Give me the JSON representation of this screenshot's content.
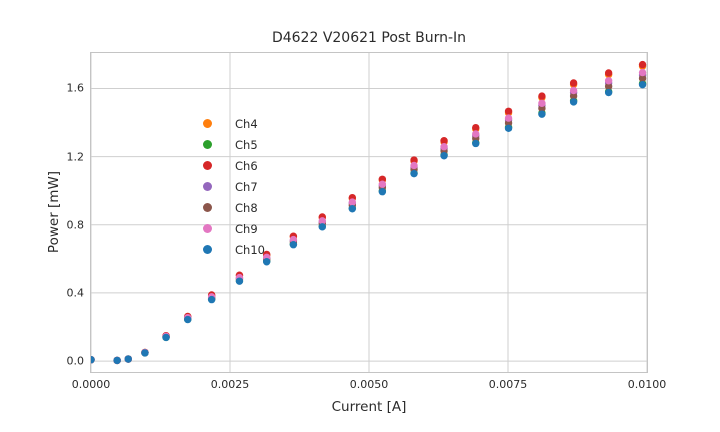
{
  "figure": {
    "title": "D4622 V20621 Post Burn-In",
    "xlabel": "Current [A]",
    "ylabel": "Power [mW]"
  },
  "chart_data": {
    "type": "scatter",
    "title": "D4622 V20621 Post Burn-In",
    "xlabel": "Current [A]",
    "ylabel": "Power [mW]",
    "xlim": [
      0.0,
      0.01
    ],
    "ylim": [
      -0.064,
      1.808
    ],
    "x_ticks": [
      0.0,
      0.0025,
      0.005,
      0.0075,
      0.01
    ],
    "x_tick_labels": [
      "0.0000",
      "0.0025",
      "0.0050",
      "0.0075",
      "0.0100"
    ],
    "y_ticks": [
      0.0,
      0.4,
      0.8,
      1.2,
      1.6
    ],
    "y_tick_labels": [
      "0.0",
      "0.4",
      "0.8",
      "1.2",
      "1.6"
    ],
    "grid": true,
    "grid_color": "#cfcfcf",
    "legend_position": "upper left",
    "x": [
      0.0,
      0.00047,
      0.00067,
      0.00097,
      0.00135,
      0.00174,
      0.00217,
      0.00267,
      0.00316,
      0.00364,
      0.00416,
      0.0047,
      0.00524,
      0.00581,
      0.00635,
      0.00692,
      0.00751,
      0.00811,
      0.00868,
      0.00931,
      0.00992
    ],
    "series": [
      {
        "name": "Ch4",
        "color": "#ff7f0e",
        "values": [
          0.008,
          0.004,
          0.012,
          0.051,
          0.148,
          0.261,
          0.385,
          0.501,
          0.622,
          0.729,
          0.841,
          0.954,
          1.061,
          1.173,
          1.286,
          1.362,
          1.457,
          1.546,
          1.623,
          1.681,
          1.73
        ]
      },
      {
        "name": "Ch5",
        "color": "#2ca02c",
        "values": [
          0.008,
          0.004,
          0.012,
          0.048,
          0.139,
          0.245,
          0.363,
          0.471,
          0.586,
          0.686,
          0.792,
          0.898,
          0.999,
          1.104,
          1.21,
          1.282,
          1.372,
          1.456,
          1.528,
          1.582,
          1.629
        ]
      },
      {
        "name": "Ch6",
        "color": "#d62728",
        "values": [
          0.008,
          0.004,
          0.012,
          0.051,
          0.149,
          0.262,
          0.388,
          0.504,
          0.626,
          0.733,
          0.846,
          0.959,
          1.067,
          1.18,
          1.293,
          1.37,
          1.466,
          1.555,
          1.632,
          1.691,
          1.74
        ]
      },
      {
        "name": "Ch7",
        "color": "#9467bd",
        "values": [
          0.008,
          0.004,
          0.012,
          0.05,
          0.144,
          0.253,
          0.374,
          0.486,
          0.604,
          0.707,
          0.816,
          0.926,
          1.03,
          1.139,
          1.248,
          1.322,
          1.415,
          1.501,
          1.575,
          1.632,
          1.679
        ]
      },
      {
        "name": "Ch8",
        "color": "#8c564b",
        "values": [
          0.008,
          0.004,
          0.012,
          0.049,
          0.142,
          0.25,
          0.369,
          0.48,
          0.597,
          0.699,
          0.807,
          0.914,
          1.017,
          1.125,
          1.233,
          1.306,
          1.397,
          1.483,
          1.556,
          1.612,
          1.659
        ]
      },
      {
        "name": "Ch9",
        "color": "#e377c2",
        "values": [
          0.008,
          0.004,
          0.012,
          0.05,
          0.145,
          0.255,
          0.377,
          0.49,
          0.609,
          0.713,
          0.823,
          0.933,
          1.038,
          1.148,
          1.258,
          1.333,
          1.426,
          1.513,
          1.588,
          1.645,
          1.693
        ]
      },
      {
        "name": "Ch10",
        "color": "#1f77b4",
        "values": [
          0.008,
          0.004,
          0.012,
          0.048,
          0.139,
          0.244,
          0.361,
          0.469,
          0.583,
          0.683,
          0.788,
          0.894,
          0.994,
          1.1,
          1.205,
          1.277,
          1.366,
          1.449,
          1.521,
          1.576,
          1.622
        ]
      }
    ]
  }
}
